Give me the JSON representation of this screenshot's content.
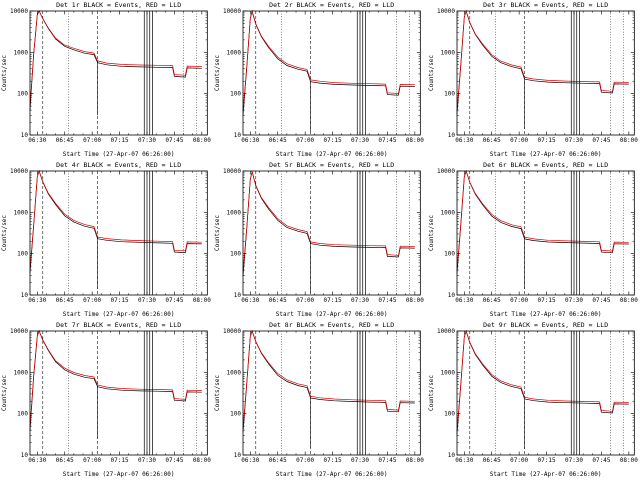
{
  "page": {
    "background": "#ffffff",
    "text_color": "#000000"
  },
  "chart_axes": {
    "xlim": [
      0,
      97
    ],
    "ylim": [
      10,
      10000
    ],
    "ylog": true,
    "xticks": {
      "pos": [
        4,
        19,
        34,
        49,
        64,
        79,
        94
      ],
      "labels": [
        "06:30",
        "06:45",
        "07:00",
        "07:15",
        "07:30",
        "07:45",
        "08:00"
      ]
    },
    "yticks": [
      10,
      100,
      1000,
      10000
    ],
    "vlines": {
      "dashed": [
        7,
        37
      ],
      "dotted": [
        21,
        84,
        91
      ],
      "solid": [
        62.5,
        64,
        65.5,
        67
      ]
    }
  },
  "chart_data": [
    {
      "type": "line",
      "title": "Det 1r BLACK = Events, RED = LLD",
      "xlabel": "Start Time (27-Apr-07 06:26:00)",
      "ylabel": "Counts/sec",
      "x": [
        0,
        2,
        4,
        5,
        7,
        10,
        14,
        19,
        24,
        30,
        35,
        37,
        42,
        50,
        60,
        70,
        78,
        79,
        85,
        86,
        94
      ],
      "series": [
        {
          "name": "Events",
          "color": "#000000",
          "values": [
            40,
            900,
            8000,
            10500,
            6500,
            3800,
            2100,
            1400,
            1150,
            950,
            880,
            560,
            500,
            460,
            445,
            435,
            428,
            262,
            252,
            420,
            410
          ]
        },
        {
          "name": "LLD",
          "color": "#dd0000",
          "values": [
            50,
            950,
            8200,
            10700,
            6600,
            3900,
            2200,
            1500,
            1250,
            1040,
            960,
            620,
            550,
            510,
            495,
            485,
            478,
            290,
            280,
            465,
            455
          ]
        }
      ],
      "spike": {
        "x": 37,
        "low": 30
      }
    },
    {
      "type": "line",
      "title": "Det 2r BLACK = Events, RED = LLD",
      "xlabel": "Start Time (27-Apr-07 06:26:00)",
      "ylabel": "Counts/sec",
      "x": [
        0,
        2,
        4,
        5,
        7,
        10,
        14,
        19,
        24,
        30,
        35,
        37,
        42,
        50,
        60,
        70,
        78,
        79,
        85,
        86,
        94
      ],
      "series": [
        {
          "name": "Events",
          "color": "#000000",
          "values": [
            30,
            400,
            6500,
            9800,
            4800,
            2400,
            1300,
            700,
            480,
            390,
            350,
            195,
            180,
            168,
            162,
            158,
            155,
            95,
            92,
            152,
            150
          ]
        },
        {
          "name": "LLD",
          "color": "#dd0000",
          "values": [
            36,
            440,
            6700,
            10000,
            4900,
            2500,
            1400,
            770,
            530,
            430,
            385,
            215,
            200,
            185,
            178,
            174,
            170,
            105,
            101,
            167,
            165
          ]
        }
      ],
      "spike": {
        "x": 37,
        "low": 12
      }
    },
    {
      "type": "line",
      "title": "Det 3r BLACK = Events, RED = LLD",
      "xlabel": "Start Time (27-Apr-07 06:26:00)",
      "ylabel": "Counts/sec",
      "x": [
        0,
        2,
        4,
        5,
        7,
        10,
        14,
        19,
        24,
        30,
        35,
        37,
        42,
        50,
        60,
        70,
        78,
        79,
        85,
        86,
        94
      ],
      "series": [
        {
          "name": "Events",
          "color": "#000000",
          "values": [
            32,
            450,
            7000,
            10000,
            5200,
            2700,
            1500,
            800,
            560,
            450,
            400,
            225,
            205,
            190,
            183,
            178,
            175,
            108,
            104,
            172,
            170
          ]
        },
        {
          "name": "LLD",
          "color": "#dd0000",
          "values": [
            38,
            495,
            7200,
            10200,
            5300,
            2800,
            1600,
            880,
            615,
            495,
            440,
            248,
            226,
            209,
            201,
            196,
            193,
            119,
            114,
            189,
            187
          ]
        }
      ],
      "spike": {
        "x": 37,
        "low": 14
      }
    },
    {
      "type": "line",
      "title": "Det 4r BLACK = Events, RED = LLD",
      "xlabel": "Start Time (27-Apr-07 06:26:00)",
      "ylabel": "Counts/sec",
      "x": [
        0,
        2,
        4,
        5,
        7,
        10,
        14,
        19,
        24,
        30,
        35,
        37,
        42,
        50,
        60,
        70,
        78,
        79,
        85,
        86,
        94
      ],
      "series": [
        {
          "name": "Events",
          "color": "#000000",
          "values": [
            34,
            480,
            7200,
            10100,
            5400,
            2800,
            1550,
            820,
            580,
            460,
            410,
            230,
            210,
            195,
            188,
            182,
            178,
            110,
            106,
            175,
            172
          ]
        },
        {
          "name": "LLD",
          "color": "#dd0000",
          "values": [
            40,
            528,
            7400,
            10300,
            5500,
            2900,
            1650,
            900,
            638,
            506,
            451,
            253,
            231,
            215,
            207,
            200,
            196,
            121,
            117,
            193,
            189
          ]
        }
      ],
      "spike": {
        "x": 37,
        "low": 14
      }
    },
    {
      "type": "line",
      "title": "Det 5r BLACK = Events, RED = LLD",
      "xlabel": "Start Time (27-Apr-07 06:26:00)",
      "ylabel": "Counts/sec",
      "x": [
        0,
        2,
        4,
        5,
        7,
        10,
        14,
        19,
        24,
        30,
        35,
        37,
        42,
        50,
        60,
        70,
        78,
        79,
        85,
        86,
        94
      ],
      "series": [
        {
          "name": "Events",
          "color": "#000000",
          "values": [
            28,
            380,
            6200,
            9600,
            4400,
            2200,
            1200,
            640,
            430,
            350,
            310,
            175,
            160,
            150,
            145,
            142,
            140,
            86,
            83,
            138,
            136
          ]
        },
        {
          "name": "LLD",
          "color": "#dd0000",
          "values": [
            34,
            418,
            6400,
            9800,
            4500,
            2300,
            1300,
            704,
            473,
            385,
            341,
            193,
            176,
            165,
            160,
            156,
            154,
            95,
            91,
            152,
            150
          ]
        }
      ],
      "spike": {
        "x": 37,
        "low": 11
      }
    },
    {
      "type": "line",
      "title": "Det 6r BLACK = Events, RED = LLD",
      "xlabel": "Start Time (27-Apr-07 06:26:00)",
      "ylabel": "Counts/sec",
      "x": [
        0,
        2,
        4,
        5,
        7,
        10,
        14,
        19,
        24,
        30,
        35,
        37,
        42,
        50,
        60,
        70,
        78,
        79,
        85,
        86,
        94
      ],
      "series": [
        {
          "name": "Events",
          "color": "#000000",
          "values": [
            33,
            460,
            7100,
            10050,
            5300,
            2750,
            1520,
            810,
            570,
            455,
            405,
            228,
            207,
            192,
            185,
            180,
            176,
            109,
            105,
            173,
            171
          ]
        },
        {
          "name": "LLD",
          "color": "#dd0000",
          "values": [
            39,
            506,
            7300,
            10250,
            5400,
            2850,
            1620,
            890,
            627,
            500,
            446,
            251,
            228,
            211,
            204,
            198,
            194,
            120,
            116,
            190,
            188
          ]
        }
      ],
      "spike": {
        "x": 37,
        "low": 14
      }
    },
    {
      "type": "line",
      "title": "Det 7r BLACK = Events, RED = LLD",
      "xlabel": "Start Time (27-Apr-07 06:26:00)",
      "ylabel": "Counts/sec",
      "x": [
        0,
        2,
        4,
        5,
        7,
        10,
        14,
        19,
        24,
        30,
        35,
        37,
        42,
        50,
        60,
        70,
        78,
        79,
        85,
        86,
        94
      ],
      "series": [
        {
          "name": "Events",
          "color": "#000000",
          "values": [
            38,
            800,
            7500,
            10200,
            6000,
            3400,
            1800,
            1150,
            900,
            760,
            700,
            450,
            400,
            370,
            355,
            350,
            342,
            210,
            202,
            336,
            330
          ]
        },
        {
          "name": "LLD",
          "color": "#dd0000",
          "values": [
            46,
            880,
            7700,
            10400,
            6100,
            3500,
            1900,
            1265,
            990,
            836,
            770,
            495,
            440,
            407,
            391,
            385,
            376,
            231,
            222,
            370,
            363
          ]
        }
      ],
      "spike": {
        "x": 37,
        "low": 25
      }
    },
    {
      "type": "line",
      "title": "Det 8r BLACK = Events, RED = LLD",
      "xlabel": "Start Time (27-Apr-07 06:26:00)",
      "ylabel": "Counts/sec",
      "x": [
        0,
        2,
        4,
        5,
        7,
        10,
        14,
        19,
        24,
        30,
        35,
        37,
        42,
        50,
        60,
        70,
        78,
        79,
        85,
        86,
        94
      ],
      "series": [
        {
          "name": "Events",
          "color": "#000000",
          "values": [
            35,
            500,
            7300,
            10150,
            5500,
            2900,
            1600,
            850,
            600,
            480,
            430,
            240,
            220,
            205,
            197,
            191,
            187,
            115,
            111,
            184,
            181
          ]
        },
        {
          "name": "LLD",
          "color": "#dd0000",
          "values": [
            42,
            550,
            7500,
            10350,
            5600,
            3000,
            1700,
            935,
            660,
            528,
            473,
            264,
            242,
            226,
            217,
            210,
            206,
            127,
            122,
            202,
            199
          ]
        }
      ],
      "spike": {
        "x": 37,
        "low": 15
      }
    },
    {
      "type": "line",
      "title": "Det 9r BLACK = Events, RED = LLD",
      "xlabel": "Start Time (27-Apr-07 06:26:00)",
      "ylabel": "Counts/sec",
      "x": [
        0,
        2,
        4,
        5,
        7,
        10,
        14,
        19,
        24,
        30,
        35,
        37,
        42,
        50,
        60,
        70,
        78,
        79,
        85,
        86,
        94
      ],
      "series": [
        {
          "name": "Events",
          "color": "#000000",
          "values": [
            32,
            455,
            7050,
            10020,
            5250,
            2720,
            1510,
            805,
            565,
            452,
            402,
            226,
            206,
            191,
            184,
            179,
            175,
            108,
            104,
            172,
            170
          ]
        },
        {
          "name": "LLD",
          "color": "#dd0000",
          "values": [
            38,
            500,
            7250,
            10220,
            5350,
            2820,
            1610,
            886,
            622,
            497,
            442,
            249,
            227,
            210,
            202,
            197,
            193,
            119,
            114,
            189,
            187
          ]
        }
      ],
      "spike": {
        "x": 37,
        "low": 14
      }
    }
  ]
}
